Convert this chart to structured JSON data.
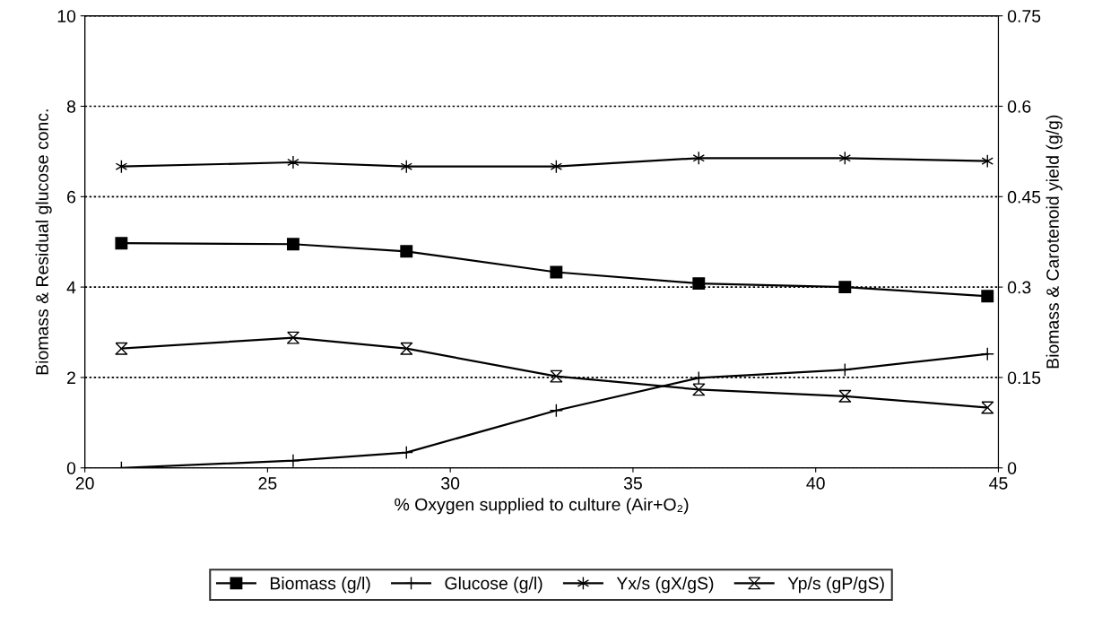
{
  "chart_data": {
    "type": "line",
    "xlabel": "% Oxygen supplied to culture (Air+O₂)",
    "ylabel": "Biomass & Residual glucose conc.",
    "y2label": "Biomass & Carotenoid yield (g/g)",
    "x": [
      21,
      25.7,
      28.8,
      32.9,
      36.8,
      40.8,
      44.7
    ],
    "series": [
      {
        "name": "Biomass (g/l)",
        "color": "#000000",
        "marker": "square",
        "values": [
          4.97,
          4.95,
          4.79,
          4.33,
          4.08,
          4.0,
          3.8
        ]
      },
      {
        "name": "Glucose (g/l)",
        "color": "#000000",
        "marker": "cross",
        "values": [
          0,
          0.16,
          0.34,
          1.27,
          1.99,
          2.17,
          2.52
        ]
      },
      {
        "name": "Yx/s (gX/gS)",
        "color": "#000000",
        "marker": "cross",
        "axis": "y2",
        "values": [
          0.5,
          0.507,
          0.5,
          0.5,
          0.514,
          0.514,
          0.509
        ]
      },
      {
        "name": "Yp/s (gP/gS)",
        "color": "#000000",
        "marker": "diamond",
        "axis": "y2",
        "values": [
          0.198,
          0.216,
          0.198,
          0.152,
          0.13,
          0.119,
          0.1
        ]
      }
    ],
    "xlim": [
      20,
      45
    ],
    "xticks": [
      20,
      25,
      30,
      35,
      40,
      45
    ],
    "ylim": [
      0,
      10
    ],
    "yticks": [
      0,
      2,
      4,
      6,
      8,
      10
    ],
    "y2lim": [
      0,
      0.75
    ],
    "y2ticks": [
      0,
      0.15,
      0.3,
      0.45,
      0.6,
      0.75
    ],
    "grid": "y",
    "legend": "bottom",
    "line_style": "solid"
  }
}
